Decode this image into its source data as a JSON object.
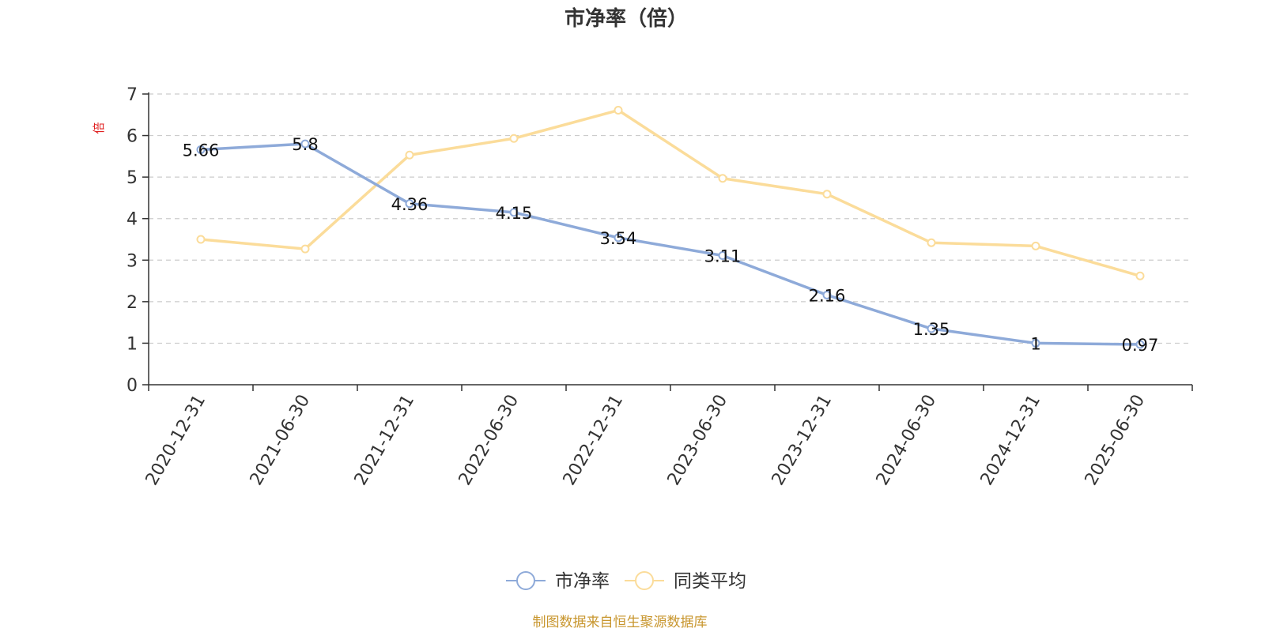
{
  "chart_data": {
    "type": "line",
    "title": "市净率（倍）",
    "ylabel": "倍",
    "categories": [
      "2020-12-31",
      "2021-06-30",
      "2021-12-31",
      "2022-06-30",
      "2022-12-31",
      "2023-06-30",
      "2023-12-31",
      "2024-06-30",
      "2024-12-31",
      "2025-06-30"
    ],
    "ylim": [
      0,
      7
    ],
    "yticks": [
      0,
      1,
      2,
      3,
      4,
      5,
      6,
      7
    ],
    "grid": true,
    "legend_position": "bottom",
    "series": [
      {
        "name": "市净率",
        "color": "#8eaad9",
        "values": [
          5.66,
          5.8,
          4.36,
          4.15,
          3.54,
          3.11,
          2.16,
          1.35,
          1,
          0.97
        ],
        "data_labels": [
          "5.66",
          "5.8",
          "4.36",
          "4.15",
          "3.54",
          "3.11",
          "2.16",
          "1.35",
          "1",
          "0.97"
        ]
      },
      {
        "name": "同类平均",
        "color": "#fbdc9a",
        "values": [
          3.5,
          3.27,
          5.53,
          5.93,
          6.61,
          4.97,
          4.59,
          3.42,
          3.34,
          2.62
        ]
      }
    ],
    "ylabel_color": "#e02020",
    "source_text": "制图数据来自恒生聚源数据库",
    "source_color": "#c8962e"
  }
}
